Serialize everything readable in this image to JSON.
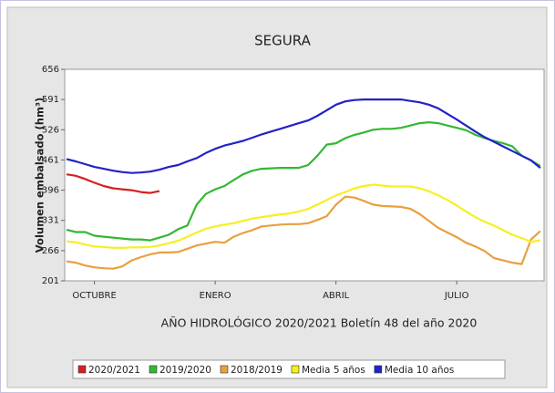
{
  "chart_data": {
    "type": "line",
    "title": "SEGURA",
    "ylabel": "Volumen embalsado (hm³)",
    "xlabel": "AÑO HIDROLÓGICO 2020/2021 Boletín 48 del año 2020",
    "x": [
      1,
      2,
      3,
      4,
      5,
      6,
      7,
      8,
      9,
      10,
      11,
      12,
      13,
      14,
      15,
      16,
      17,
      18,
      19,
      20,
      21,
      22,
      23,
      24,
      25,
      26,
      27,
      28,
      29,
      30,
      31,
      32,
      33,
      34,
      35,
      36,
      37,
      38,
      39,
      40,
      41,
      42,
      43,
      44,
      45,
      46,
      47,
      48,
      49,
      50,
      51,
      52
    ],
    "xlim": [
      0.8,
      52.4
    ],
    "xticks": [
      {
        "value": 4,
        "label": "OCTUBRE"
      },
      {
        "value": 17,
        "label": "ENERO"
      },
      {
        "value": 30,
        "label": "ABRIL"
      },
      {
        "value": 43,
        "label": "JULIO"
      }
    ],
    "ylim": [
      201,
      656
    ],
    "yticks": [
      201,
      266,
      331,
      396,
      461,
      526,
      591,
      656
    ],
    "grid": false,
    "legend": "bottom",
    "series": [
      {
        "name": "2020/2021",
        "color": "#d62020",
        "values": [
          430,
          427,
          420,
          412,
          405,
          400,
          398,
          396,
          392,
          390,
          394,
          null,
          null,
          null,
          null,
          null,
          null,
          null,
          null,
          null,
          null,
          null,
          null,
          null,
          null,
          null,
          null,
          null,
          null,
          null,
          null,
          null,
          null,
          null,
          null,
          null,
          null,
          null,
          null,
          null,
          null,
          null,
          null,
          null,
          null,
          null,
          null,
          null,
          null,
          null,
          null,
          null
        ]
      },
      {
        "name": "2019/2020",
        "color": "#33b833",
        "values": [
          311,
          306,
          306,
          298,
          296,
          294,
          292,
          290,
          290,
          288,
          294,
          300,
          312,
          320,
          365,
          388,
          398,
          405,
          418,
          430,
          438,
          442,
          443,
          444,
          444,
          444,
          450,
          470,
          494,
          497,
          508,
          515,
          520,
          526,
          528,
          528,
          530,
          535,
          540,
          542,
          540,
          535,
          530,
          525,
          515,
          508,
          502,
          497,
          490,
          470,
          460,
          448
        ]
      },
      {
        "name": "2018/2019",
        "color": "#e8a040",
        "values": [
          243,
          240,
          234,
          230,
          228,
          227,
          232,
          245,
          252,
          258,
          262,
          262,
          263,
          270,
          277,
          281,
          285,
          283,
          296,
          304,
          310,
          318,
          320,
          322,
          323,
          323,
          325,
          332,
          340,
          365,
          382,
          380,
          373,
          365,
          362,
          361,
          360,
          356,
          345,
          330,
          315,
          305,
          295,
          283,
          275,
          265,
          250,
          245,
          240,
          237,
          290,
          308
        ]
      },
      {
        "name": "Media 5 años",
        "color": "#f5f020",
        "values": [
          286,
          284,
          279,
          275,
          274,
          272,
          272,
          273,
          273,
          274,
          277,
          282,
          287,
          296,
          305,
          313,
          318,
          322,
          325,
          330,
          335,
          338,
          341,
          344,
          346,
          350,
          356,
          365,
          375,
          385,
          392,
          400,
          405,
          408,
          406,
          404,
          404,
          404,
          400,
          394,
          385,
          375,
          363,
          350,
          338,
          328,
          320,
          310,
          300,
          293,
          285,
          288
        ]
      },
      {
        "name": "Media 10 años",
        "color": "#2222c8",
        "values": [
          463,
          458,
          452,
          446,
          442,
          438,
          435,
          433,
          434,
          436,
          440,
          446,
          450,
          458,
          465,
          476,
          485,
          492,
          497,
          502,
          509,
          516,
          522,
          528,
          534,
          540,
          546,
          556,
          568,
          580,
          587,
          590,
          591,
          591,
          591,
          591,
          591,
          588,
          585,
          580,
          572,
          560,
          548,
          535,
          522,
          510,
          500,
          490,
          480,
          470,
          460,
          444
        ]
      }
    ]
  }
}
